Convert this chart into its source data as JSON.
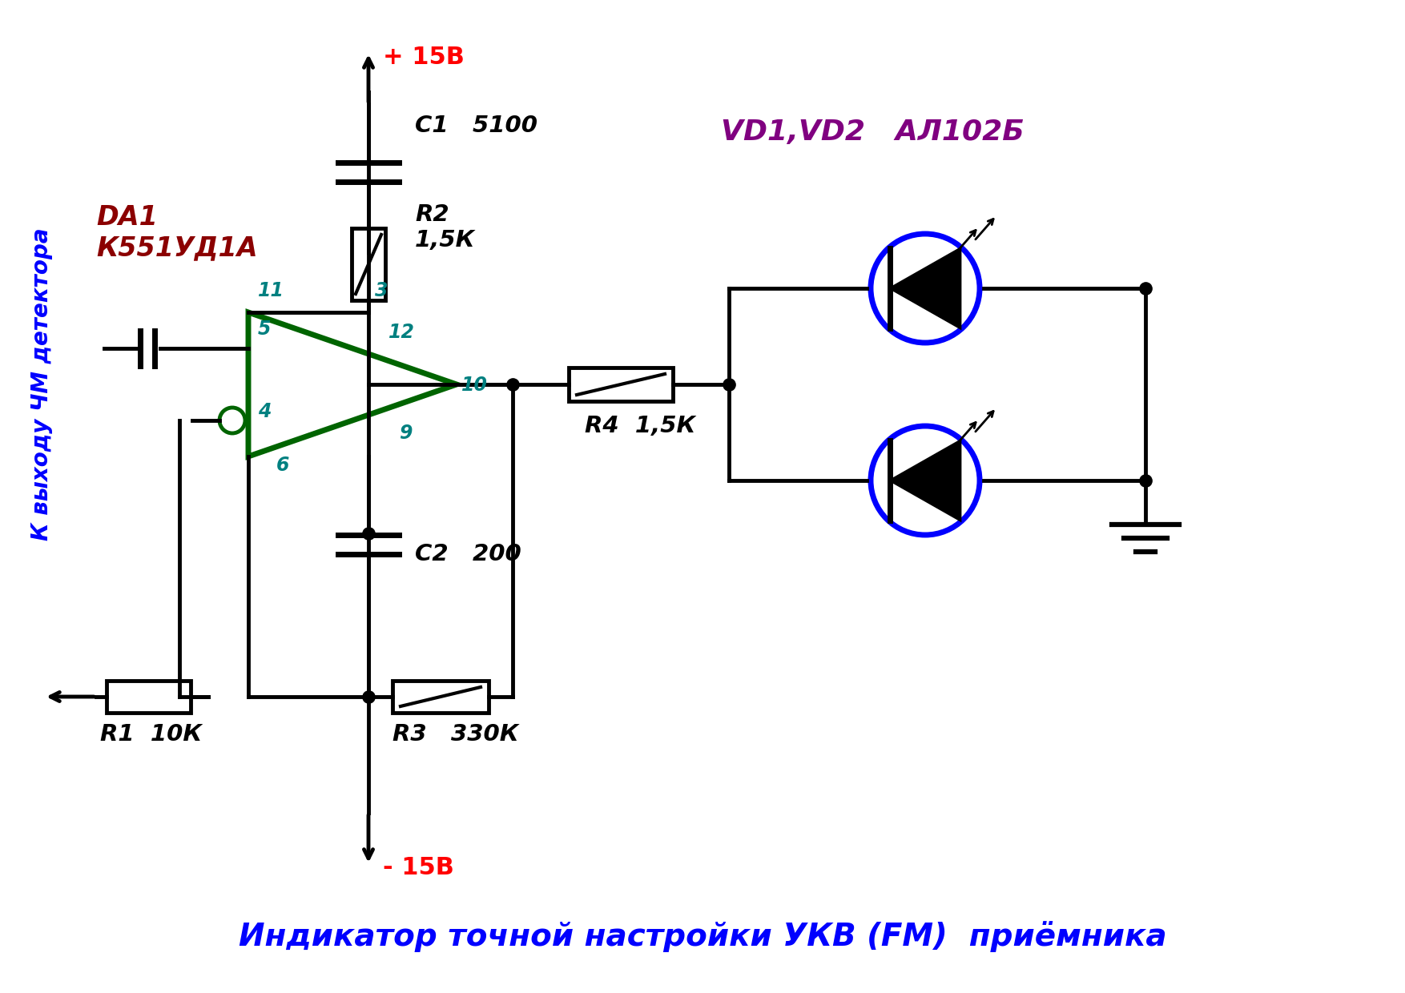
{
  "title": "Индикатор точной настройки УКВ (FM)  приёмника",
  "title_color": "#0000FF",
  "bg_color": "#FFFFFF",
  "plus15_label": "+ 15В",
  "minus15_label": "- 15В",
  "da1_label": "DA1\nК551УД1А",
  "da1_color": "#8B0000",
  "vd_label": "VD1,VD2   АЛ102Б",
  "vd_color": "#800080",
  "left_label": "К выходу ЧМ детектора",
  "left_color": "#0000FF",
  "c1_label": "C1   5100",
  "c2_label": "C2   200",
  "r1_label": "R1  10К",
  "r2_label": "R2\n1,5К",
  "r3_label": "R3   330К",
  "r4_label": "R4  1,5К",
  "pin_color": "#008080",
  "op_amp_color": "#006400",
  "wire_color": "#000000",
  "led_circle_color": "#0000FF"
}
